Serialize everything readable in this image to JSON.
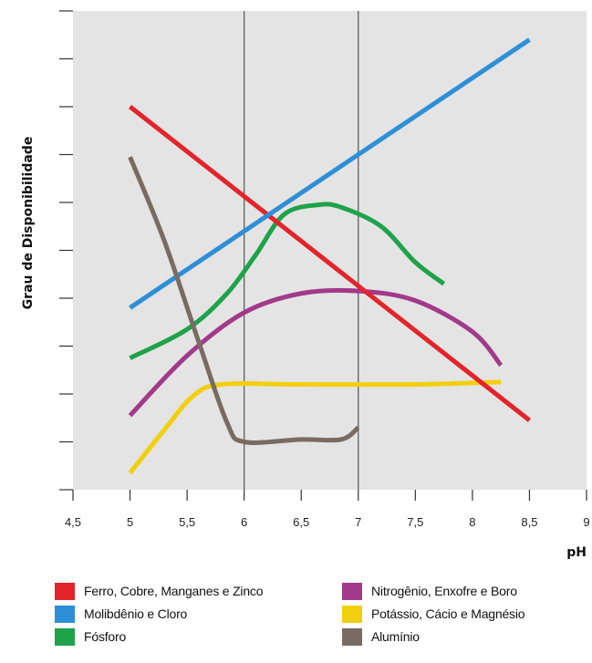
{
  "chart_data": {
    "type": "line",
    "xlabel": "pH",
    "ylabel": "Grau de Disponibilidade",
    "xlim": [
      4.5,
      9
    ],
    "ylim": [
      0,
      10
    ],
    "x_ticks": [
      "4,5",
      "5",
      "5,5",
      "6",
      "6,5",
      "7",
      "7,5",
      "8",
      "8,5",
      "9"
    ],
    "x_tick_values": [
      4.5,
      5,
      5.5,
      6,
      6.5,
      7,
      7.5,
      8,
      8.5,
      9
    ],
    "y_tick_values": [
      0,
      1,
      2,
      3,
      4,
      5,
      6,
      7,
      8,
      9,
      10
    ],
    "y_tick_labels_shown": false,
    "reference_lines_x": [
      6,
      7
    ],
    "background": "#e4e4e4",
    "grid": false,
    "legend_position": "bottom",
    "series": [
      {
        "name": "Ferro, Cobre, Manganes e Zinco",
        "color": "#e3242b",
        "x": [
          5,
          8.5
        ],
        "y": [
          8.0,
          1.45
        ]
      },
      {
        "name": "Molibdênio e Cloro",
        "color": "#2e8fd6",
        "x": [
          5,
          8.5
        ],
        "y": [
          3.8,
          9.4
        ]
      },
      {
        "name": "Fósforo",
        "color": "#1ea24a",
        "x": [
          5,
          5.5,
          5.85,
          6.1,
          6.35,
          6.65,
          6.85,
          7.2,
          7.5,
          7.75
        ],
        "y": [
          2.75,
          3.35,
          4.1,
          4.9,
          5.75,
          5.95,
          5.9,
          5.5,
          4.75,
          4.3
        ]
      },
      {
        "name": "Nitrogênio, Enxofre e Boro",
        "color": "#a23a8a",
        "x": [
          5,
          5.5,
          6,
          6.5,
          7,
          7.5,
          8,
          8.25
        ],
        "y": [
          1.55,
          2.8,
          3.7,
          4.1,
          4.15,
          3.95,
          3.3,
          2.6
        ]
      },
      {
        "name": "Potássio, Cácio e Magnésio",
        "color": "#f2cf0c",
        "x": [
          5,
          5.3,
          5.55,
          5.8,
          6.5,
          7.5,
          8.25
        ],
        "y": [
          0.35,
          1.25,
          1.95,
          2.2,
          2.2,
          2.2,
          2.25
        ]
      },
      {
        "name": "Alumínio",
        "color": "#7a6b62",
        "x": [
          5,
          5.3,
          5.6,
          5.85,
          6.0,
          6.5,
          6.85,
          7.0
        ],
        "y": [
          6.95,
          5.2,
          3.1,
          1.4,
          1.0,
          1.05,
          1.05,
          1.3
        ]
      }
    ]
  }
}
